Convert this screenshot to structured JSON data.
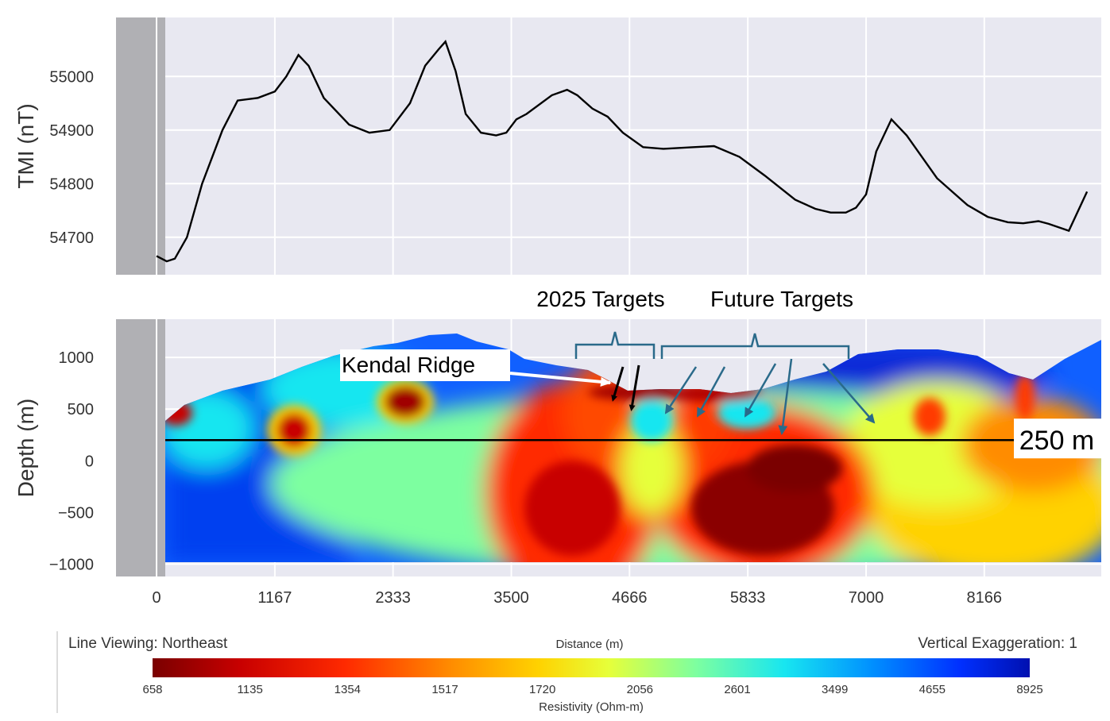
{
  "chart_data": [
    {
      "type": "line",
      "ylabel": "TMI (nT)",
      "ylim": [
        54630,
        55110
      ],
      "xlim": [
        -400,
        9320
      ],
      "y_ticks": [
        54700,
        54800,
        54900,
        55000
      ],
      "x_grid": [
        0,
        1167,
        2333,
        3500,
        4666,
        5833,
        7000,
        8166
      ],
      "grid": true,
      "series": [
        {
          "x": [
            0,
            100,
            180,
            300,
            450,
            650,
            800,
            1000,
            1167,
            1280,
            1400,
            1500,
            1650,
            1900,
            2100,
            2300,
            2500,
            2650,
            2780,
            2850,
            2950,
            3050,
            3200,
            3350,
            3450,
            3550,
            3650,
            3900,
            4050,
            4150,
            4300,
            4450,
            4600,
            4800,
            5000,
            5300,
            5500,
            5750,
            6000,
            6300,
            6500,
            6650,
            6800,
            6900,
            7000,
            7100,
            7250,
            7400,
            7700,
            8000,
            8200,
            8400,
            8550,
            8700,
            8800,
            9000,
            9180
          ],
          "values": [
            54665,
            54655,
            54660,
            54700,
            54800,
            54900,
            54955,
            54960,
            54972,
            55000,
            55040,
            55020,
            54960,
            54910,
            54895,
            54900,
            54950,
            55020,
            55050,
            55065,
            55010,
            54930,
            54895,
            54890,
            54895,
            54920,
            54930,
            54965,
            54975,
            54965,
            54940,
            54925,
            54895,
            54868,
            54865,
            54868,
            54870,
            54850,
            54815,
            54770,
            54753,
            54746,
            54746,
            54755,
            54780,
            54860,
            54920,
            54890,
            54810,
            54760,
            54738,
            54728,
            54726,
            54730,
            54725,
            54712,
            54785
          ]
        }
      ]
    },
    {
      "type": "heatmap",
      "ylabel": "Depth (m)",
      "xlabel": "Distance (m)",
      "ylim": [
        -1120,
        1370
      ],
      "xlim": [
        -400,
        9320
      ],
      "y_ticks": [
        -1000,
        -500,
        0,
        500,
        1000
      ],
      "x_ticks": [
        "0",
        "1167",
        "2333",
        "3500",
        "4666",
        "5833",
        "7000",
        "8166"
      ],
      "grid": true,
      "reference_line": {
        "y": 200,
        "label": "250 m"
      },
      "colorbar": {
        "label": "Resistivity (Ohm-m)",
        "ticks": [
          "658",
          "1135",
          "1354",
          "1517",
          "1720",
          "2056",
          "2601",
          "3499",
          "4655",
          "8925"
        ],
        "colors": [
          "#7a0000",
          "#c80000",
          "#ff2a00",
          "#ff8c00",
          "#ffd200",
          "#e6ff3a",
          "#7dffa0",
          "#18e6f0",
          "#0090ff",
          "#0030ff",
          "#0010b0"
        ]
      },
      "annotations": [
        "Kendal Ridge",
        "2025 Targets",
        "Future Targets"
      ]
    }
  ],
  "footer": {
    "left": "Line Viewing: Northeast",
    "center": "Distance (m)",
    "right": "Vertical Exaggeration: 1"
  },
  "colors": {
    "panel_bg": "#e8e8f1",
    "panel_gray": "#b0b0b4",
    "grid": "#ffffff",
    "line": "#000000",
    "target_arrow": "#2a6a8a"
  }
}
